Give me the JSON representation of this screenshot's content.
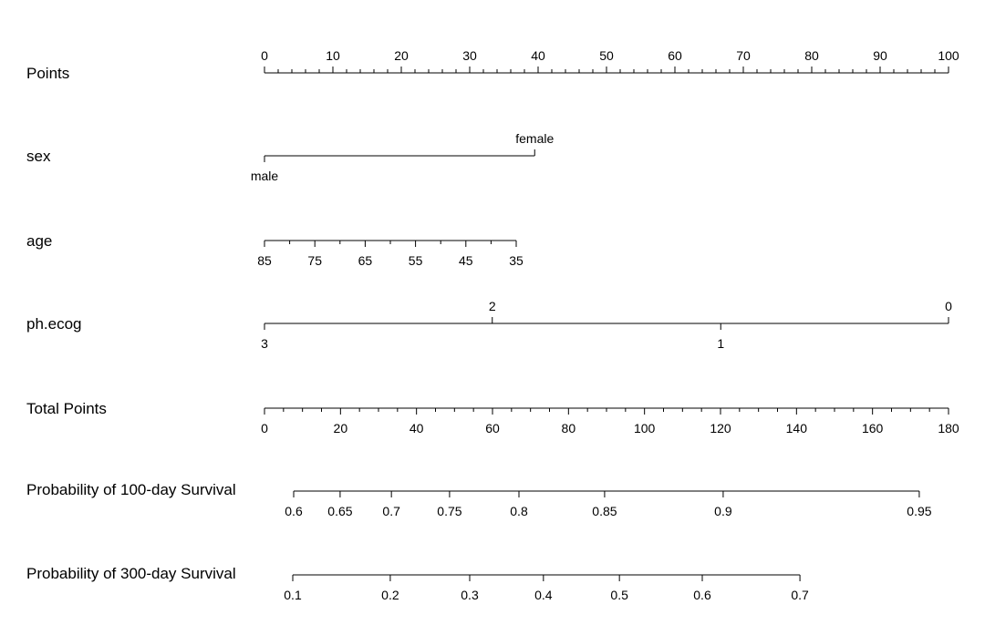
{
  "chart_data": {
    "type": "nomogram",
    "points_lim": [
      0,
      100
    ],
    "total_points_lim": [
      0,
      180
    ],
    "rows": [
      {
        "label": "Points",
        "scale": "points",
        "ticks": [
          0,
          10,
          20,
          30,
          40,
          50,
          60,
          70,
          80,
          90,
          100
        ],
        "tick_points": [
          0,
          10,
          20,
          30,
          40,
          50,
          60,
          70,
          80,
          90,
          100
        ],
        "label_side": [
          "above",
          "above",
          "above",
          "above",
          "above",
          "above",
          "above",
          "above",
          "above",
          "above",
          "above"
        ],
        "minor_tick_points": [
          2,
          4,
          6,
          8,
          12,
          14,
          16,
          18,
          22,
          24,
          26,
          28,
          32,
          34,
          36,
          38,
          42,
          44,
          46,
          48,
          52,
          54,
          56,
          58,
          62,
          64,
          66,
          68,
          72,
          74,
          76,
          78,
          82,
          84,
          86,
          88,
          92,
          94,
          96,
          98
        ]
      },
      {
        "label": "sex",
        "scale": "points",
        "ticks": [
          "male",
          "female"
        ],
        "tick_points": [
          0,
          39.5
        ],
        "label_side": [
          "below",
          "above"
        ]
      },
      {
        "label": "age",
        "scale": "points",
        "ticks": [
          85,
          75,
          65,
          55,
          45,
          35
        ],
        "tick_points": [
          0,
          7.36,
          14.72,
          22.08,
          29.44,
          36.8
        ],
        "label_side": [
          "below",
          "below",
          "below",
          "below",
          "below",
          "below"
        ],
        "minor_tick_points": [
          3.68,
          11.04,
          18.4,
          25.76,
          33.12
        ]
      },
      {
        "label": "ph.ecog",
        "scale": "points",
        "ticks": [
          3,
          2,
          1,
          0
        ],
        "tick_points": [
          0,
          33.3,
          66.7,
          100
        ],
        "label_side": [
          "below",
          "above",
          "below",
          "above"
        ]
      },
      {
        "label": "Total Points",
        "scale": "total_points",
        "ticks": [
          0,
          20,
          40,
          60,
          80,
          100,
          120,
          140,
          160,
          180
        ],
        "tick_points": [
          0,
          20,
          40,
          60,
          80,
          100,
          120,
          140,
          160,
          180
        ],
        "label_side": [
          "below",
          "below",
          "below",
          "below",
          "below",
          "below",
          "below",
          "below",
          "below",
          "below"
        ],
        "minor_tick_points": [
          5,
          10,
          15,
          25,
          30,
          35,
          45,
          50,
          55,
          65,
          70,
          75,
          85,
          90,
          95,
          105,
          110,
          115,
          125,
          130,
          135,
          145,
          150,
          155,
          165,
          170,
          175
        ]
      },
      {
        "label": "Probability of 100-day Survival",
        "scale": "total_points",
        "ticks": [
          0.6,
          0.65,
          0.7,
          0.75,
          0.8,
          0.85,
          0.9,
          0.95
        ],
        "tick_points": [
          7.68,
          19.9,
          33.4,
          48.7,
          66.96,
          89.5,
          120.7,
          172.3
        ],
        "label_side": [
          "below",
          "below",
          "below",
          "below",
          "below",
          "below",
          "below",
          "below"
        ]
      },
      {
        "label": "Probability of 300-day Survival",
        "scale": "total_points",
        "ticks": [
          0.1,
          0.2,
          0.3,
          0.4,
          0.5,
          0.6,
          0.7
        ],
        "tick_points": [
          7.44,
          33.1,
          54.0,
          73.4,
          93.4,
          115.2,
          140.9
        ],
        "label_side": [
          "below",
          "below",
          "below",
          "below",
          "below",
          "below",
          "below"
        ]
      }
    ]
  }
}
